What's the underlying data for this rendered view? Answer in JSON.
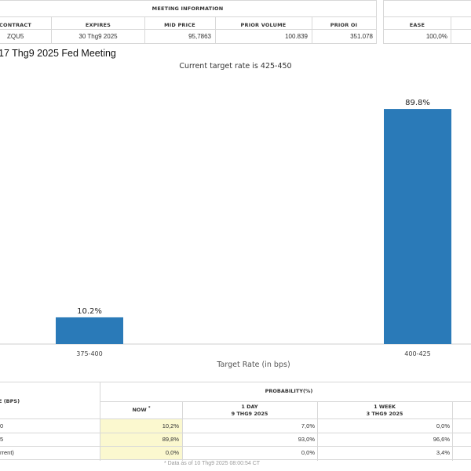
{
  "meeting_info": {
    "header": "MEETING INFORMATION",
    "columns": [
      "CONTRACT",
      "EXPIRES",
      "MID PRICE",
      "PRIOR VOLUME",
      "PRIOR OI"
    ],
    "row": {
      "contract": "ZQU5",
      "expires": "30 Thg9 2025",
      "mid_price": "95,7863",
      "prior_volume": "100.839",
      "prior_oi": "351.078"
    }
  },
  "side_panel": {
    "columns": [
      "EASE"
    ],
    "row": {
      "ease": "100,0%"
    }
  },
  "title": "17 Thg9 2025 Fed Meeting",
  "subtitle": "Current target rate is 425-450",
  "chart_data": {
    "type": "bar",
    "categories": [
      "375-400",
      "400-425"
    ],
    "values": [
      10.2,
      89.8
    ],
    "value_labels": [
      "10.2%",
      "89.8%"
    ],
    "xlabel": "Target Rate (in bps)",
    "ylabel": "",
    "ylim": [
      0,
      100
    ],
    "bar_color": "#2a7ab8",
    "grid": false
  },
  "probability_table": {
    "left_header": "E (BPS)",
    "header": "PROBABILITY(%)",
    "columns": [
      {
        "label": "NOW",
        "sub": "",
        "mark": "*"
      },
      {
        "label": "1 DAY",
        "sub": "9 THG9 2025"
      },
      {
        "label": "1 WEEK",
        "sub": "3 THG9 2025"
      }
    ],
    "rows": [
      {
        "label": "0",
        "now": "10,2%",
        "day": "7,0%",
        "week": "0,0%"
      },
      {
        "label": "5",
        "now": "89,8%",
        "day": "93,0%",
        "week": "96,6%"
      },
      {
        "label": "rrent)",
        "now": "0,0%",
        "day": "0,0%",
        "week": "3,4%"
      }
    ]
  },
  "footnote": "* Data as of 10 Thg9 2025 08:00:54 CT"
}
